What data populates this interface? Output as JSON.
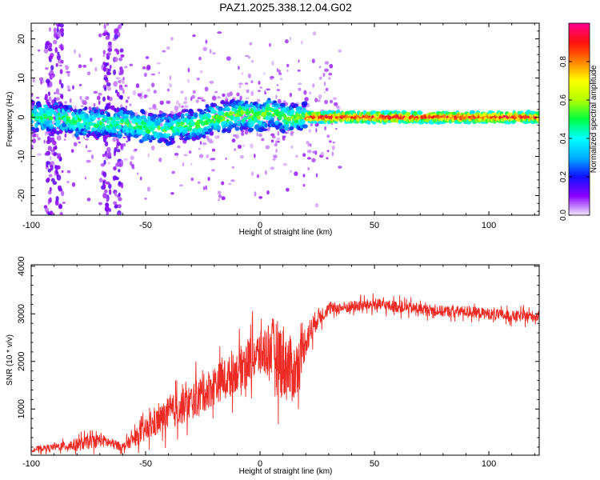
{
  "figure": {
    "title": "PAZ1.2025.338.12.04.G02"
  },
  "chart_data": [
    {
      "type": "heatmap",
      "xlabel": "Height of straight line (km)",
      "ylabel": "Frequency (Hz)",
      "xlim": [
        -100,
        122
      ],
      "ylim": [
        -25,
        24
      ],
      "xticks": [
        -100,
        -50,
        0,
        50,
        100
      ],
      "xtick_labels": [
        "-100",
        "-50",
        "0",
        "50",
        "100"
      ],
      "yticks": [
        -20,
        -10,
        0,
        10,
        20
      ],
      "ytick_labels": [
        "-20",
        "-10",
        "0",
        "10",
        "20"
      ],
      "ridge": {
        "x": [
          -100,
          -90,
          -80,
          -70,
          -60,
          -50,
          -40,
          -30,
          -20,
          -15,
          -10,
          -5,
          0,
          5,
          10,
          20,
          40,
          60,
          80,
          100,
          122
        ],
        "y": [
          0.3,
          0,
          -1,
          -1.5,
          -1.5,
          -2.5,
          -3,
          -2,
          -0.5,
          0,
          0.8,
          0.8,
          0,
          1.5,
          0,
          0,
          0,
          0,
          0,
          0,
          0
        ]
      },
      "colorbar": {
        "label": "Normalized spectral amplitude",
        "range": [
          0,
          1
        ],
        "ticks": [
          0.0,
          0.2,
          0.4,
          0.6,
          0.8
        ],
        "tick_labels": [
          "0.0",
          "0.2",
          "0.4",
          "0.6",
          "0.8"
        ],
        "colors": [
          "#f2e8f8",
          "#8a00ff",
          "#1010ff",
          "#00b0ff",
          "#00ffff",
          "#00ff40",
          "#b0ff00",
          "#ffff00",
          "#ff8000",
          "#ff1010",
          "#ff0090"
        ]
      }
    },
    {
      "type": "line",
      "xlabel": "Height of straight line (km)",
      "ylabel": "SNR (10 * v/v)",
      "xlim": [
        -100,
        122
      ],
      "ylim": [
        30,
        4030
      ],
      "xticks": [
        -100,
        -50,
        0,
        50,
        100
      ],
      "xtick_labels": [
        "-100",
        "-50",
        "0",
        "50",
        "100"
      ],
      "yticks": [
        1000,
        2000,
        3000,
        4000
      ],
      "ytick_labels": [
        "1000",
        "2000",
        "3000",
        "4000"
      ],
      "series": [
        {
          "name": "SNR",
          "color": "#ee2a24",
          "x": [
            -100,
            -90,
            -80,
            -70,
            -60,
            -50,
            -40,
            -30,
            -20,
            -10,
            -5,
            0,
            5,
            10,
            15,
            20,
            25,
            30,
            40,
            50,
            60,
            70,
            80,
            90,
            100,
            110,
            122
          ],
          "y": [
            150,
            200,
            250,
            350,
            200,
            550,
            900,
            1150,
            1500,
            1800,
            2050,
            2150,
            2300,
            2000,
            1750,
            2450,
            2900,
            3100,
            3150,
            3200,
            3150,
            3100,
            3050,
            3050,
            3000,
            2950,
            2950
          ],
          "spread": [
            80,
            100,
            200,
            200,
            120,
            350,
            500,
            550,
            600,
            600,
            700,
            700,
            900,
            1200,
            900,
            500,
            300,
            180,
            180,
            180,
            180,
            170,
            170,
            170,
            170,
            170,
            170
          ]
        }
      ]
    }
  ]
}
